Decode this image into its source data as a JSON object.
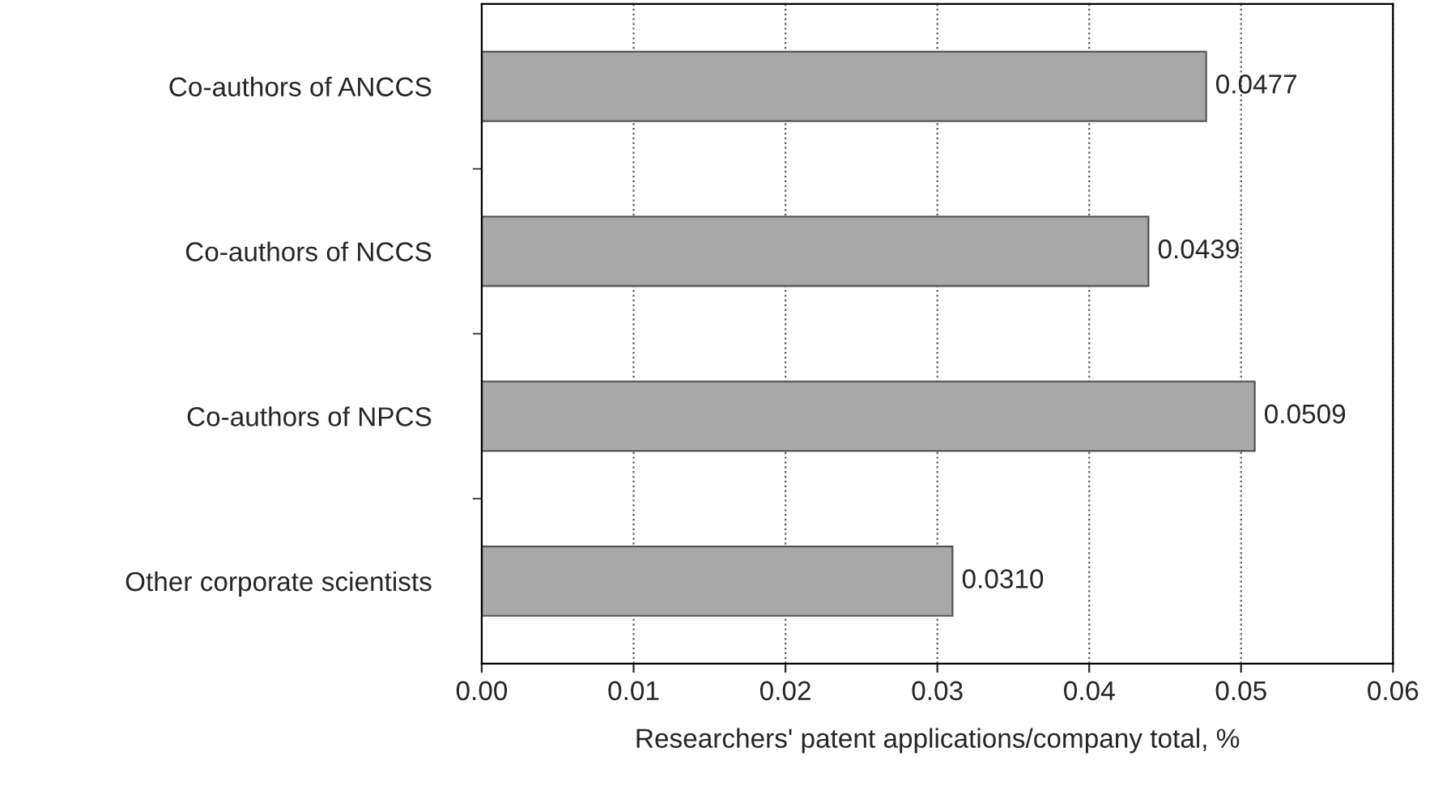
{
  "chart_data": {
    "type": "bar",
    "orientation": "horizontal",
    "xlabel": "Researchers' patent applications/company total, %",
    "categories": [
      "Co-authors of ANCCS",
      "Co-authors of NCCS",
      "Co-authors of NPCS",
      "Other corporate scientists"
    ],
    "values": [
      0.0477,
      0.0439,
      0.0509,
      0.031
    ],
    "value_labels": [
      "0.0477",
      "0.0439",
      "0.0509",
      "0.0310"
    ],
    "color": "#a8a8a8",
    "xlim": [
      0,
      0.06
    ],
    "xticks": [
      {
        "value": 0,
        "label": "0.00"
      },
      {
        "value": 0.01,
        "label": "0.01"
      },
      {
        "value": 0.02,
        "label": "0.02"
      },
      {
        "value": 0.03,
        "label": "0.03"
      },
      {
        "value": 0.04,
        "label": "0.04"
      },
      {
        "value": 0.05,
        "label": "0.05"
      },
      {
        "value": 0.06,
        "label": "0.06"
      }
    ],
    "grid": "x",
    "legend": false
  }
}
